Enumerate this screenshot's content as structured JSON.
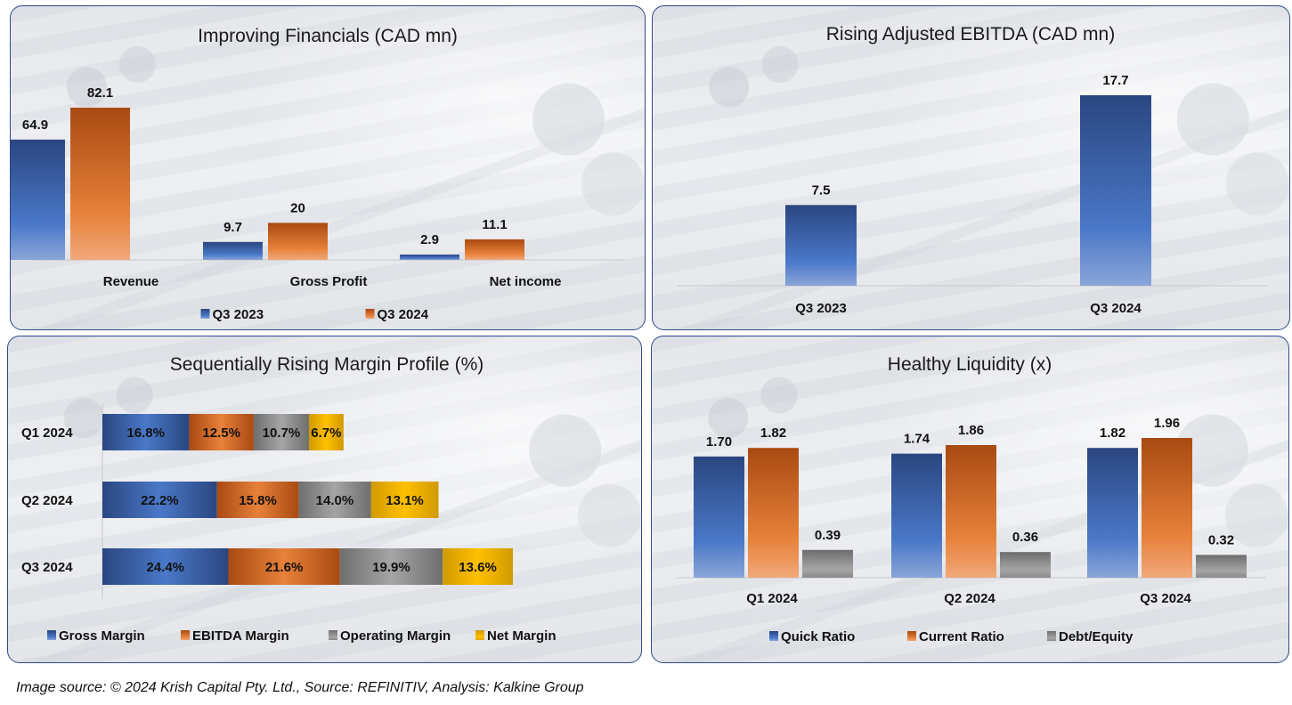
{
  "colors": {
    "blue": "#3d64b0",
    "orange": "#d86f2a",
    "gray": "#8c8c8c",
    "yellow": "#f0b400",
    "panel_border": "#2f4a8a"
  },
  "source_note": "Image source: © 2024 Krish Capital Pty. Ltd., Source: REFINITIV, Analysis: Kalkine Group",
  "chart_data": [
    {
      "id": "financials",
      "type": "bar",
      "title": "Improving Financials (CAD mn)",
      "categories": [
        "Revenue",
        "Gross Profit",
        "Net income"
      ],
      "series": [
        {
          "name": "Q3 2023",
          "color": "blue",
          "values": [
            64.9,
            9.7,
            2.9
          ],
          "labels": [
            "64.9",
            "9.7",
            "2.9"
          ]
        },
        {
          "name": "Q3 2024",
          "color": "orange",
          "values": [
            82.1,
            20,
            11.1
          ],
          "labels": [
            "82.1",
            "20",
            "11.1"
          ]
        }
      ],
      "xlabel": "",
      "ylabel": "",
      "ylim": [
        0,
        82.1
      ],
      "grid": false,
      "legend": "bottom"
    },
    {
      "id": "ebitda",
      "type": "bar",
      "title": "Rising Adjusted EBITDA (CAD mn)",
      "categories": [
        "Q3 2023",
        "Q3 2024"
      ],
      "series": [
        {
          "name": "Adjusted EBITDA",
          "color": "blue",
          "values": [
            7.5,
            17.7
          ],
          "labels": [
            "7.5",
            "17.7"
          ]
        }
      ],
      "xlabel": "",
      "ylabel": "",
      "ylim": [
        0,
        17.7
      ],
      "grid": false,
      "legend": "none"
    },
    {
      "id": "margins",
      "type": "bar",
      "orientation": "horizontal-stacked",
      "title": "Sequentially Rising Margin Profile (%)",
      "categories": [
        "Q1 2024",
        "Q2 2024",
        "Q3 2024"
      ],
      "series": [
        {
          "name": "Gross Margin",
          "color": "blue",
          "values": [
            16.8,
            22.2,
            24.4
          ],
          "labels": [
            "16.8%",
            "22.2%",
            "24.4%"
          ]
        },
        {
          "name": "EBITDA Margin",
          "color": "orange",
          "values": [
            12.5,
            15.8,
            21.6
          ],
          "labels": [
            "12.5%",
            "15.8%",
            "21.6%"
          ]
        },
        {
          "name": "Operating Margin",
          "color": "gray",
          "values": [
            10.7,
            14.0,
            19.9
          ],
          "labels": [
            "10.7%",
            "14.0%",
            "19.9%"
          ]
        },
        {
          "name": "Net Margin",
          "color": "yellow",
          "values": [
            6.7,
            13.1,
            13.6
          ],
          "labels": [
            "6.7%",
            "13.1%",
            "13.6%"
          ]
        }
      ],
      "xlabel": "",
      "ylabel": "",
      "xlim": [
        0,
        79.5
      ],
      "grid": false,
      "legend": "bottom"
    },
    {
      "id": "liquidity",
      "type": "bar",
      "title": "Healthy Liquidity (x)",
      "categories": [
        "Q1 2024",
        "Q2 2024",
        "Q3 2024"
      ],
      "series": [
        {
          "name": "Quick Ratio",
          "color": "blue",
          "values": [
            1.7,
            1.74,
            1.82
          ],
          "labels": [
            "1.70",
            "1.74",
            "1.82"
          ]
        },
        {
          "name": "Current Ratio",
          "color": "orange",
          "values": [
            1.82,
            1.86,
            1.96
          ],
          "labels": [
            "1.82",
            "1.86",
            "1.96"
          ]
        },
        {
          "name": "Debt/Equity",
          "color": "gray",
          "values": [
            0.39,
            0.36,
            0.32
          ],
          "labels": [
            "0.39",
            "0.36",
            "0.32"
          ]
        }
      ],
      "xlabel": "",
      "ylabel": "",
      "ylim": [
        0,
        1.96
      ],
      "grid": false,
      "legend": "bottom"
    }
  ]
}
